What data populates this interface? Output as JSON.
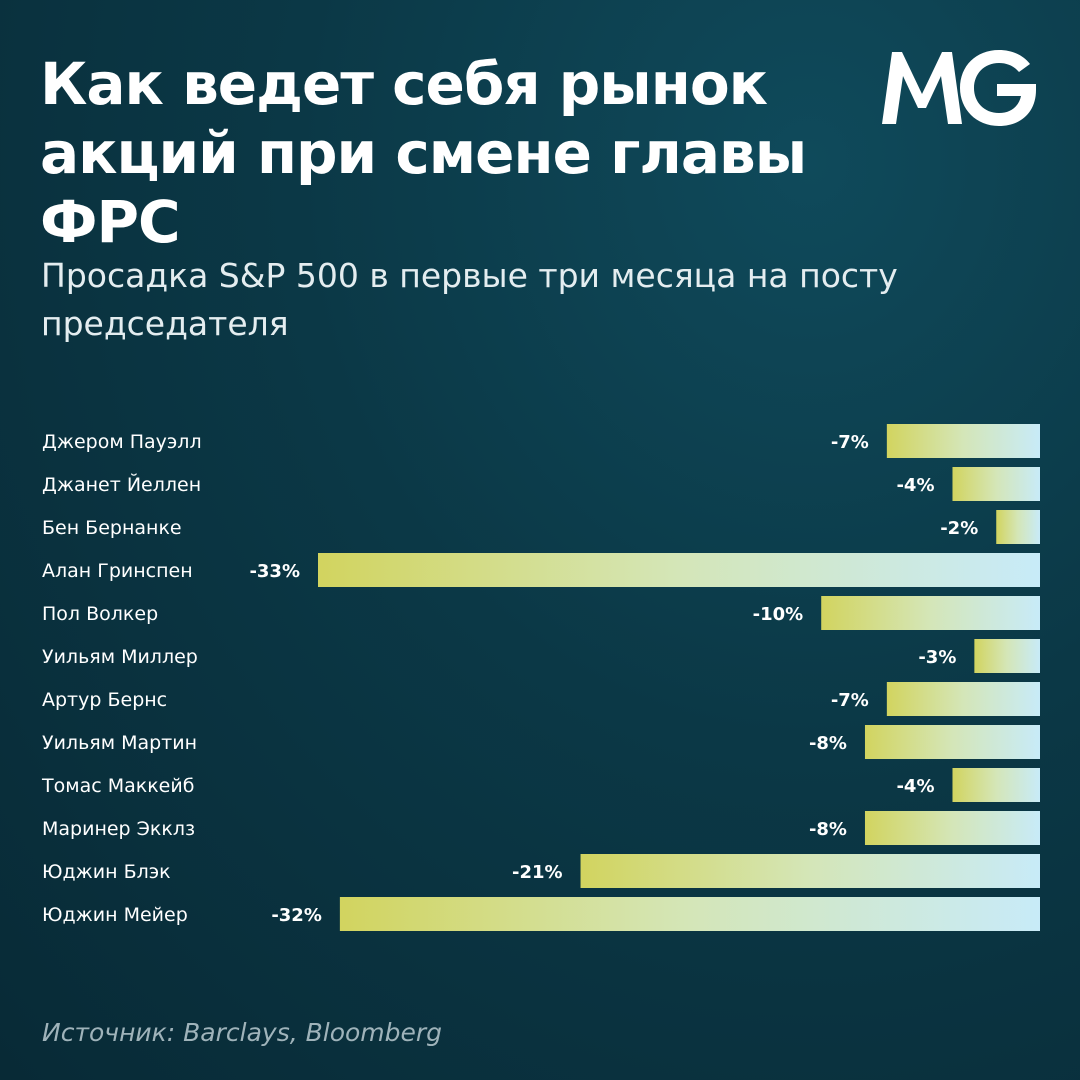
{
  "title": "Как ведет себя рынок акций при смене главы ФРС",
  "subtitle": "Просадка S&P 500 в первые три месяца на посту председателя",
  "logo": "MG",
  "source": "Источник:  Barclays, Bloomberg",
  "colors": {
    "background": "#0b3846",
    "bar_start": "#d2d45f",
    "bar_end": "#c8ebf8"
  },
  "chart_data": {
    "type": "bar",
    "orientation": "horizontal",
    "title": "Как ведет себя рынок акций при смене главы ФРС",
    "subtitle": "Просадка S&P 500 в первые три месяца на посту председателя",
    "categories": [
      "Джером Пауэлл",
      "Джанет Йеллен",
      "Бен Бернанке",
      "Алан Гринспен",
      "Пол Волкер",
      "Уильям Миллер",
      "Артур Бернс",
      "Уильям Мартин",
      "Томас Маккейб",
      "Маринер Экклз",
      "Юджин Блэк",
      "Юджин Мейер"
    ],
    "values": [
      -7,
      -4,
      -2,
      -33,
      -10,
      -3,
      -7,
      -8,
      -4,
      -8,
      -21,
      -32
    ],
    "value_labels": [
      "-7%",
      "-4%",
      "-2%",
      "-33%",
      "-10%",
      "-3%",
      "-7%",
      "-8%",
      "-4%",
      "-8%",
      "-21%",
      "-32%"
    ],
    "unit": "%",
    "xlim": [
      -33,
      0
    ],
    "grid": false,
    "legend": "none"
  }
}
